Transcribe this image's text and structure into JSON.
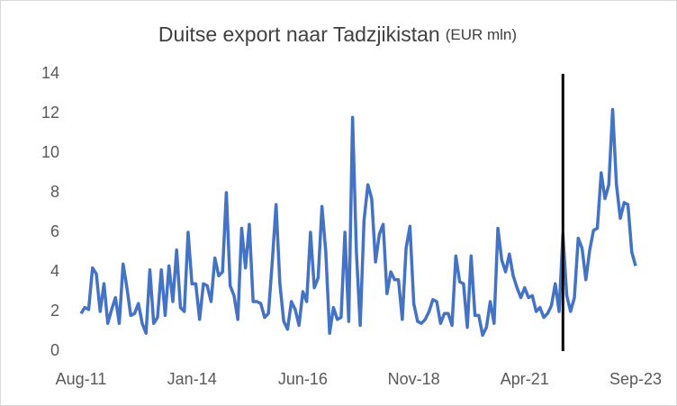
{
  "chart_data": {
    "type": "line",
    "title": "Duitse export naar Tadzjikistan",
    "subtitle": "(EUR mln)",
    "categories": [
      "Aug-11",
      null,
      null,
      null,
      null,
      null,
      null,
      null,
      null,
      null,
      null,
      null,
      null,
      null,
      null,
      null,
      null,
      null,
      null,
      null,
      null,
      null,
      null,
      null,
      null,
      null,
      null,
      null,
      null,
      "Jan-14",
      null,
      null,
      null,
      null,
      null,
      null,
      null,
      null,
      null,
      null,
      null,
      null,
      null,
      null,
      null,
      null,
      null,
      null,
      null,
      null,
      null,
      null,
      null,
      null,
      null,
      null,
      null,
      null,
      "Jun-16",
      null,
      null,
      null,
      null,
      null,
      null,
      null,
      null,
      null,
      null,
      null,
      null,
      null,
      null,
      null,
      null,
      null,
      null,
      null,
      null,
      null,
      null,
      null,
      null,
      null,
      null,
      null,
      null,
      "Nov-18",
      null,
      null,
      null,
      null,
      null,
      null,
      null,
      null,
      null,
      null,
      null,
      null,
      null,
      null,
      null,
      null,
      null,
      null,
      null,
      null,
      null,
      null,
      null,
      null,
      null,
      null,
      null,
      null,
      "Apr-21",
      null,
      null,
      null,
      null,
      null,
      null,
      null,
      null,
      null,
      null,
      null,
      null,
      null,
      null,
      null,
      null,
      null,
      null,
      null,
      null,
      null,
      null,
      null,
      null,
      null,
      null,
      null,
      null,
      "Sep-23"
    ],
    "series": [
      {
        "name": "Duitse export",
        "color": "#4472c4",
        "values": [
          1.9,
          2.2,
          2.1,
          4.2,
          3.9,
          2.0,
          3.4,
          1.4,
          2.1,
          2.7,
          1.4,
          4.4,
          3.2,
          1.8,
          1.9,
          2.4,
          1.4,
          0.9,
          4.1,
          1.4,
          1.7,
          4.1,
          1.8,
          4.3,
          2.5,
          5.1,
          2.2,
          2.0,
          6.0,
          3.4,
          3.4,
          1.6,
          3.4,
          3.3,
          2.5,
          4.7,
          3.8,
          4.0,
          8.0,
          3.3,
          2.8,
          1.6,
          6.2,
          4.2,
          6.4,
          2.5,
          2.5,
          2.4,
          1.7,
          1.9,
          4.5,
          7.4,
          3.4,
          1.5,
          1.1,
          2.5,
          2.1,
          1.3,
          3.0,
          2.5,
          6.0,
          3.2,
          3.7,
          7.3,
          5.0,
          0.9,
          2.2,
          1.6,
          1.7,
          6.0,
          1.5,
          11.8,
          5.0,
          1.3,
          6.6,
          8.4,
          7.7,
          4.5,
          5.9,
          6.4,
          2.9,
          4.0,
          3.6,
          3.6,
          1.6,
          5.2,
          6.3,
          2.4,
          1.5,
          1.4,
          1.6,
          2.0,
          2.6,
          2.5,
          1.4,
          1.9,
          1.9,
          1.3,
          4.8,
          3.5,
          3.4,
          1.2,
          4.8,
          1.8,
          1.8,
          0.8,
          1.2,
          2.5,
          1.4,
          6.2,
          4.6,
          4.0,
          4.9,
          3.8,
          3.2,
          2.7,
          3.2,
          2.7,
          2.8,
          2.0,
          2.2,
          1.7,
          1.9,
          2.3,
          3.4,
          2.0,
          5.9,
          2.8,
          2.0,
          2.7,
          5.7,
          5.2,
          3.6,
          5.1,
          6.1,
          6.2,
          9.0,
          7.7,
          8.4,
          12.2,
          8.4,
          6.7,
          7.5,
          7.4,
          5.0,
          4.3
        ]
      }
    ],
    "vline": 126,
    "vline_color": "#000000",
    "ylim": [
      0,
      14
    ],
    "yticks": [
      0,
      2,
      4,
      6,
      8,
      10,
      12,
      14
    ],
    "grid": false
  }
}
